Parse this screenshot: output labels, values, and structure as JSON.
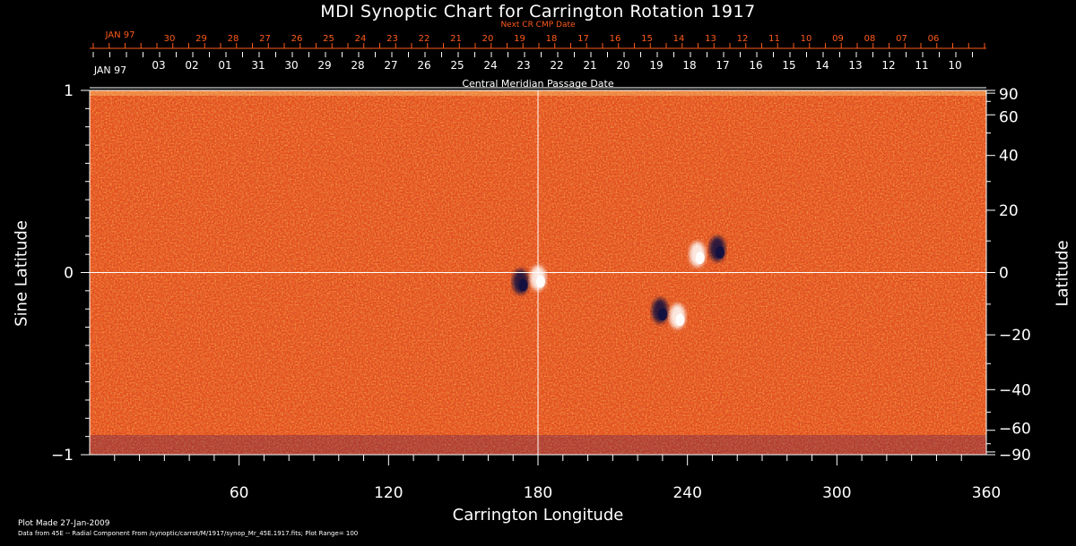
{
  "chart_data": {
    "type": "heatmap",
    "title": "MDI Synoptic Chart for Carrington Rotation 1917",
    "xlabel": "Carrington Longitude",
    "ylabel_left": "Sine Latitude",
    "ylabel_right": "Latitude",
    "xlim": [
      0,
      360
    ],
    "ylim": [
      -1,
      1
    ],
    "x_ticks": [
      60,
      120,
      180,
      240,
      300,
      360
    ],
    "y_left_ticks": [
      -1,
      0,
      1
    ],
    "y_left_tick_labels": [
      "−1",
      "0",
      "1"
    ],
    "y_right_ticks": [
      -90,
      -60,
      -40,
      -20,
      0,
      20,
      40,
      60,
      90
    ],
    "y_right_tick_labels": [
      "−90",
      "−60",
      "−40",
      "−20",
      "0",
      "20",
      "40",
      "60",
      "90"
    ],
    "crosshair": {
      "longitude": 180,
      "sine_latitude": 0
    },
    "colors": {
      "positive": "#ffffff",
      "negative": "#101040",
      "background": "#e8501a"
    },
    "top_axis_next": {
      "label": "Next CR CMP Date",
      "start_label": "JAN 97",
      "dates": [
        "30",
        "29",
        "28",
        "27",
        "26",
        "25",
        "24",
        "23",
        "22",
        "21",
        "20",
        "19",
        "18",
        "17",
        "16",
        "15",
        "14",
        "13",
        "12",
        "11",
        "10",
        "09",
        "08",
        "07",
        "06"
      ]
    },
    "top_axis_cmp": {
      "label": "Central Meridian Passage Date",
      "start_label": "JAN 97",
      "dates": [
        "03",
        "02",
        "01",
        "31",
        "30",
        "29",
        "28",
        "27",
        "26",
        "25",
        "24",
        "23",
        "22",
        "21",
        "20",
        "19",
        "18",
        "17",
        "16",
        "15",
        "14",
        "13",
        "12",
        "11",
        "10"
      ]
    },
    "active_regions": [
      {
        "lon": 173,
        "sinlat": -0.05,
        "polarity": "negative"
      },
      {
        "lon": 180,
        "sinlat": -0.03,
        "polarity": "positive"
      },
      {
        "lon": 252,
        "sinlat": 0.13,
        "polarity": "negative"
      },
      {
        "lon": 244,
        "sinlat": 0.1,
        "polarity": "positive"
      },
      {
        "lon": 229,
        "sinlat": -0.21,
        "polarity": "negative"
      },
      {
        "lon": 236,
        "sinlat": -0.24,
        "polarity": "positive"
      }
    ]
  },
  "footer": {
    "plot_made": "Plot Made 27-Jan-2009",
    "data_from": "Data from 45E -- Radial Component From /synoptic/carrot/M/1917/synop_Mr_45E.1917.fits; Plot Range= 100"
  }
}
